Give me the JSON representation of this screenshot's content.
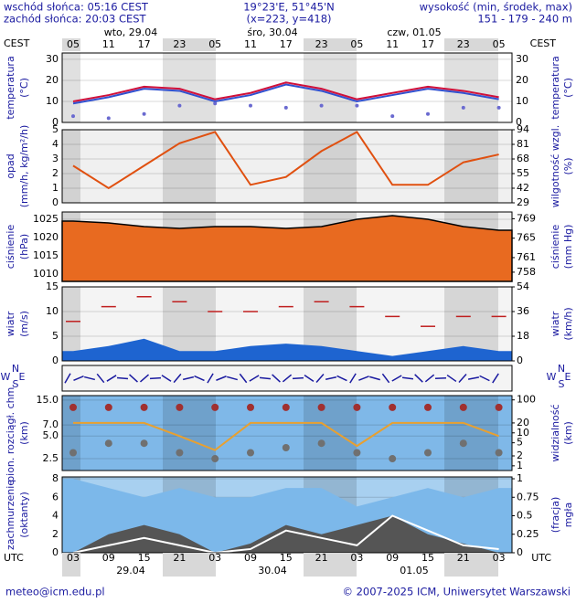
{
  "header": {
    "sunrise": "wschód słońca: 05:16 CEST",
    "sunset": "zachód słońca: 20:03 CEST",
    "coords": "19°23'E, 51°45'N",
    "grid": "(x=223, y=418)",
    "height_label": "wysokość (min, środek, max)",
    "height_values": "151 - 179 - 240 m"
  },
  "top_axis": {
    "label": "CEST",
    "ticks": [
      "05",
      "11",
      "17",
      "23",
      "05",
      "11",
      "17",
      "23",
      "05",
      "11",
      "17",
      "23",
      "05"
    ],
    "dates": [
      "wto, 29.04",
      "śro, 30.04",
      "czw, 01.05"
    ]
  },
  "bottom_axis": {
    "label": "UTC",
    "dates": [
      "29.04",
      "30.04",
      "01.05"
    ]
  },
  "wind_direction": {
    "labels": [
      "N",
      "W",
      "E",
      "S"
    ]
  },
  "footer": {
    "left": "meteo@icm.edu.pl",
    "right": "© 2007-2025 ICM, Uniwersytet Warszawski"
  },
  "chart_data": [
    {
      "type": "line",
      "ylabel": [
        "temperatura",
        "(°C)"
      ],
      "y2label": [
        "temperatura",
        "(°C)"
      ],
      "background": "#ffffff",
      "ylim": [
        0,
        33
      ],
      "yticks": [
        0,
        10,
        20,
        30
      ],
      "series": [
        {
          "kind": "line",
          "color": "#3050d0",
          "values": [
            9,
            12,
            16,
            15,
            10,
            13,
            18,
            15,
            10,
            13,
            16,
            14,
            11
          ]
        },
        {
          "kind": "line",
          "color": "#d0103a",
          "values": [
            10,
            13,
            17,
            16,
            11,
            14,
            19,
            16,
            11,
            14,
            17,
            15,
            12
          ]
        },
        {
          "kind": "dots",
          "color": "#6a6ad0",
          "values": [
            3,
            2,
            4,
            8,
            9,
            8,
            7,
            8,
            8,
            3,
            4,
            7,
            7
          ]
        }
      ]
    },
    {
      "type": "line",
      "ylabel": [
        "opad",
        "(mm/h, kg/m²/h)"
      ],
      "y2label": [
        "wilgotność wzgl.",
        "(%)"
      ],
      "background": "#f0f0f0",
      "ylim": [
        0,
        5
      ],
      "yticks": [
        0,
        1,
        2,
        3,
        4,
        5
      ],
      "y2lim": [
        29,
        94
      ],
      "y2ticks": [
        29,
        42,
        55,
        68,
        81,
        94
      ],
      "series": [
        {
          "kind": "line",
          "axis": "y2",
          "color": "#e05010",
          "values": [
            62,
            42,
            62,
            82,
            92,
            45,
            52,
            75,
            92,
            45,
            45,
            65,
            72
          ]
        }
      ]
    },
    {
      "type": "area",
      "ylabel": [
        "ciśnienie",
        "(hPa)"
      ],
      "y2label": [
        "ciśnienie",
        "(mm Hg)"
      ],
      "background": "#f0f0f0",
      "ylim": [
        1008,
        1027
      ],
      "yticks": [
        1010,
        1015,
        1020,
        1025
      ],
      "y2lim": [
        756.1,
        770.4
      ],
      "y2ticks": [
        758,
        761,
        765,
        769
      ],
      "series": [
        {
          "kind": "area",
          "color": "#e86a20",
          "values": [
            1024.5,
            1024,
            1023,
            1022.5,
            1023,
            1023,
            1022.5,
            1023,
            1025,
            1026,
            1025,
            1023,
            1022
          ]
        }
      ]
    },
    {
      "type": "area",
      "ylabel": [
        "wiatr",
        "(m/s)"
      ],
      "y2label": [
        "wiatr",
        "(km/h)"
      ],
      "background": "#f4f4f4",
      "ylim": [
        0,
        15
      ],
      "yticks": [
        0,
        5,
        10,
        15
      ],
      "y2lim": [
        0,
        54
      ],
      "y2ticks": [
        0,
        18,
        36,
        54
      ],
      "series": [
        {
          "kind": "area",
          "color": "#1e64d0",
          "values": [
            2,
            3,
            4.5,
            2,
            2,
            3,
            3.5,
            3,
            2,
            1,
            2,
            3,
            2
          ]
        },
        {
          "kind": "dash",
          "color": "#c02020",
          "values": [
            8,
            11,
            13,
            12,
            10,
            10,
            11,
            12,
            11,
            9,
            7,
            9,
            9
          ]
        }
      ]
    },
    {
      "type": "line",
      "ylabel": [
        "pion. rozciągł. chm.",
        "(km)"
      ],
      "y2label": [
        "widzialność",
        "(km)"
      ],
      "background": "#7fb8e8",
      "ylim": [
        1.74,
        17.2
      ],
      "log": true,
      "yticks": [
        {
          "value": 2.5,
          "label": "2.5"
        },
        {
          "value": 5,
          "label": "5.0"
        },
        {
          "value": 7,
          "label": "7.0"
        },
        {
          "value": 15,
          "label": "15.0"
        }
      ],
      "y2lim": [
        0.72,
        135
      ],
      "y2log": true,
      "y2ticks": [
        1,
        2,
        5,
        10,
        20,
        100
      ],
      "series": [
        {
          "kind": "dots",
          "color": "#a03030",
          "values": [
            12,
            12,
            12,
            12,
            12,
            12,
            12,
            12,
            12,
            12,
            12,
            12,
            12
          ]
        },
        {
          "kind": "dots",
          "color": "#707070",
          "values": [
            3,
            4,
            4,
            3,
            2.5,
            3,
            3.5,
            4,
            3,
            2.5,
            3,
            4,
            3
          ]
        },
        {
          "kind": "line",
          "axis": "y2",
          "color": "#e8a030",
          "values": [
            20,
            20,
            20,
            8,
            3,
            20,
            20,
            20,
            4,
            20,
            20,
            20,
            8
          ]
        }
      ]
    },
    {
      "type": "area",
      "ylabel": [
        "zachmurzenie",
        "(oktanty)"
      ],
      "y2label": [
        "(fracja)",
        "mgła"
      ],
      "background": "#a8d0f0",
      "ylim": [
        0,
        8.2
      ],
      "yticks": [
        0,
        2,
        4,
        6,
        8
      ],
      "y2lim": [
        0,
        1.025
      ],
      "y2ticks": [
        0,
        0.25,
        0.5,
        0.75,
        1
      ],
      "categories": [
        "03",
        "09",
        "15",
        "21",
        "03",
        "09",
        "15",
        "21",
        "03",
        "09",
        "15",
        "21",
        "03"
      ],
      "series": [
        {
          "kind": "area",
          "color": "#7cb8ea",
          "values": [
            8,
            7,
            6,
            7,
            6,
            6,
            7,
            7,
            5,
            6,
            7,
            6,
            7
          ]
        },
        {
          "kind": "area",
          "color": "#555555",
          "values": [
            0,
            2,
            3,
            2,
            0,
            1,
            3,
            2,
            3,
            4,
            2,
            1,
            0
          ]
        },
        {
          "kind": "line",
          "axis": "y2",
          "color": "#ffffff",
          "values": [
            0,
            0.1,
            0.2,
            0.1,
            0,
            0.05,
            0.3,
            0.2,
            0.1,
            0.5,
            0.3,
            0.1,
            0.05
          ]
        }
      ]
    }
  ]
}
